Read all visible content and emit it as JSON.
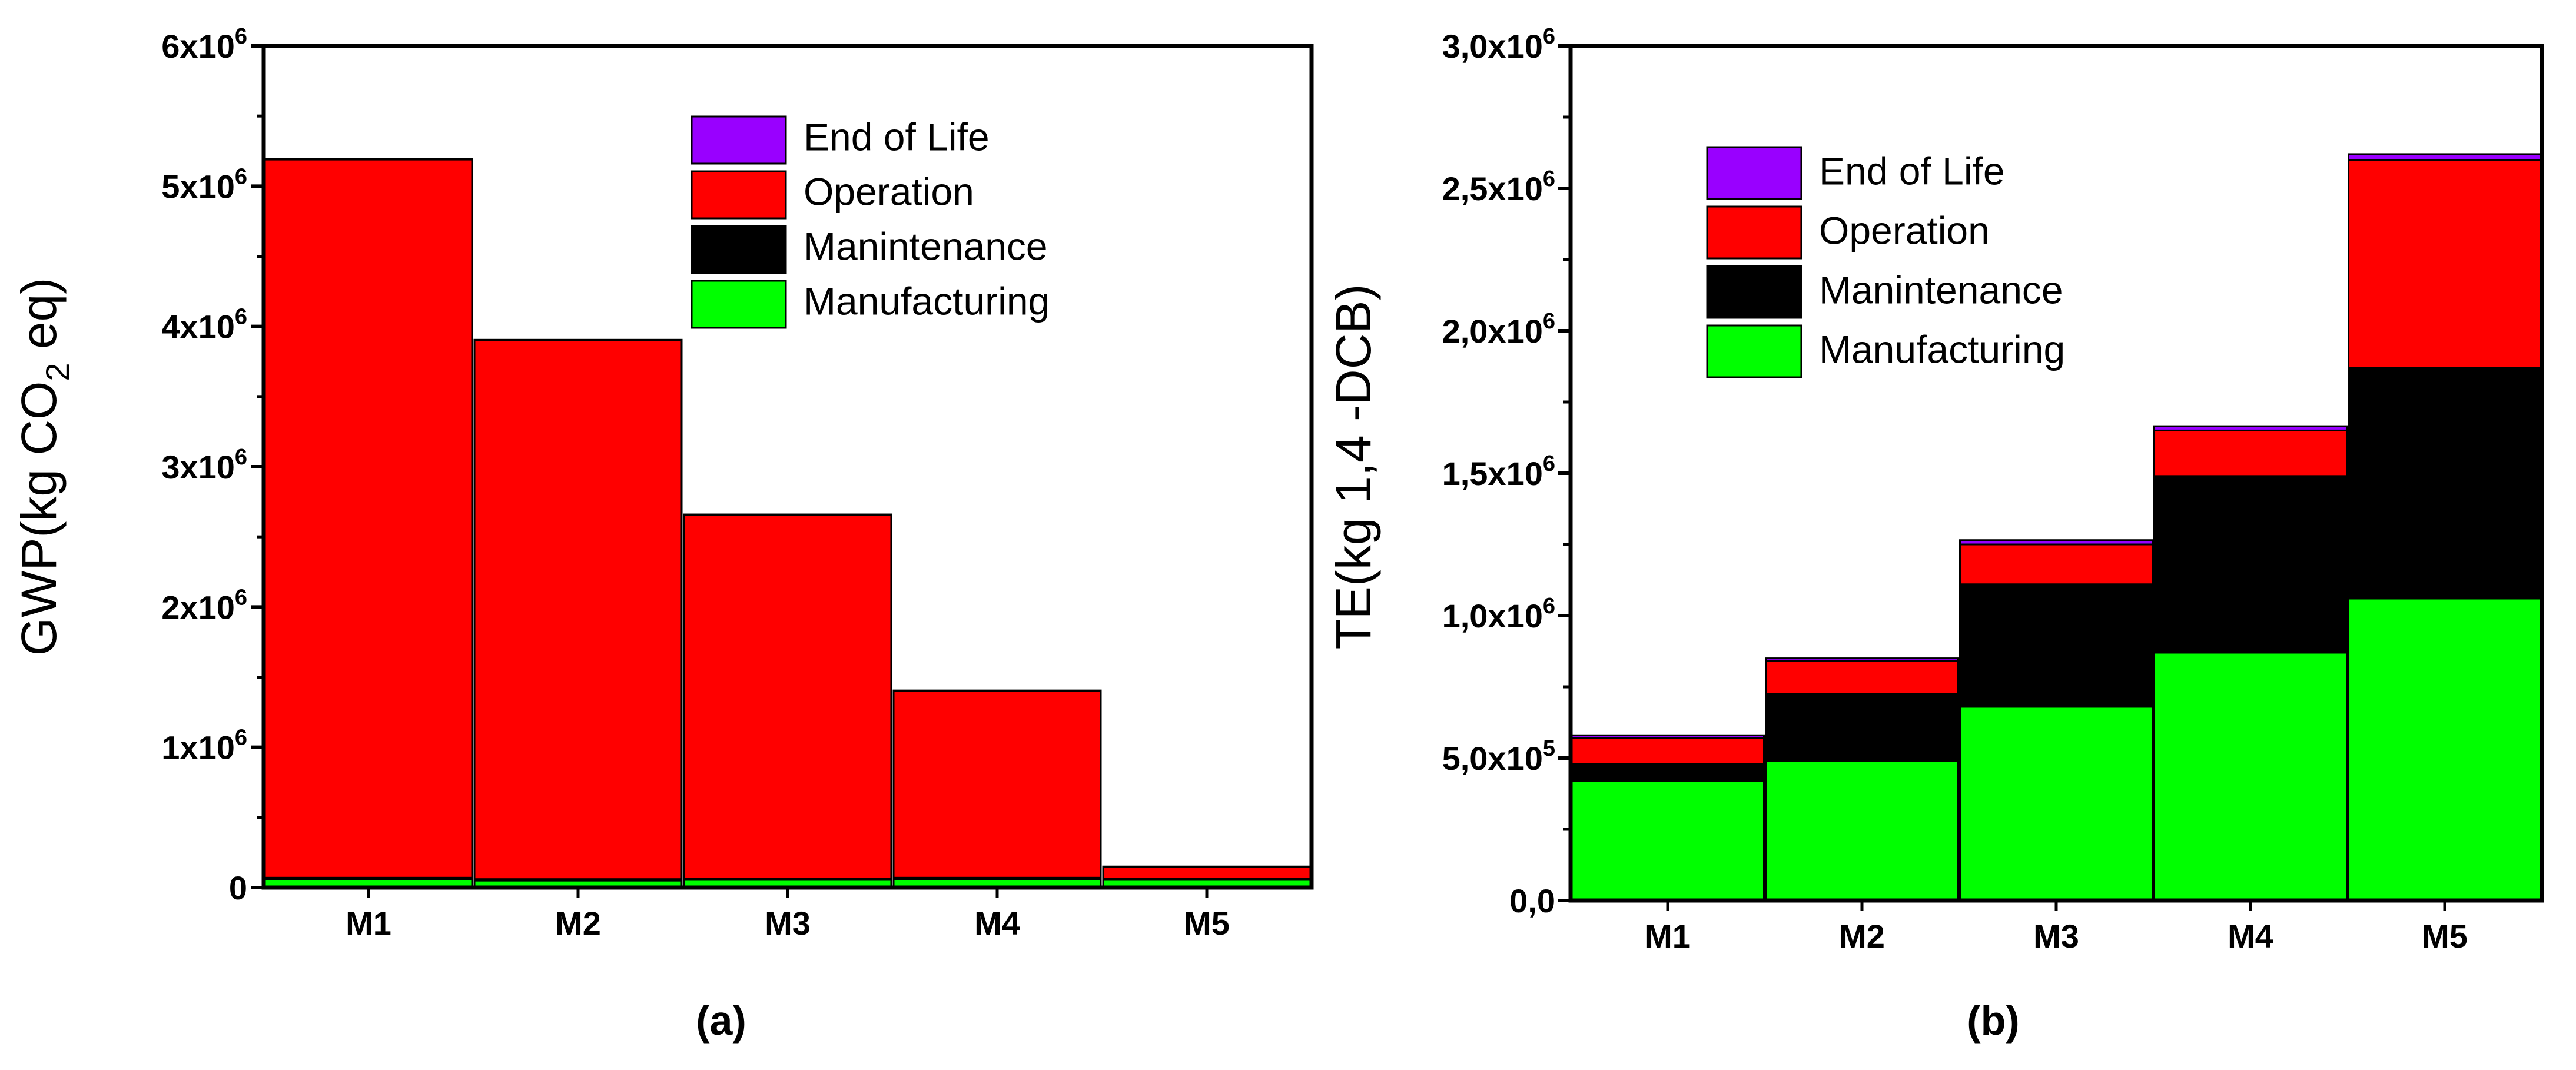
{
  "colors": {
    "End of Life": "#9900ff",
    "Operation": "#ff0000",
    "Manintenance": "#000000",
    "Manufacturing": "#00ff00"
  },
  "chart_data": [
    {
      "type": "bar",
      "stacked": true,
      "panel_label": "(a)",
      "title": "",
      "xlabel": "",
      "ylabel_parts": [
        "GWP(kg CO",
        "2",
        " eq)"
      ],
      "ylim": [
        0,
        6000000
      ],
      "yticks": [
        {
          "value": 0,
          "mantissa": "0",
          "exp": ""
        },
        {
          "value": 1000000,
          "mantissa": "1x10",
          "exp": "6"
        },
        {
          "value": 2000000,
          "mantissa": "2x10",
          "exp": "6"
        },
        {
          "value": 3000000,
          "mantissa": "3x10",
          "exp": "6"
        },
        {
          "value": 4000000,
          "mantissa": "4x10",
          "exp": "6"
        },
        {
          "value": 5000000,
          "mantissa": "5x10",
          "exp": "6"
        },
        {
          "value": 6000000,
          "mantissa": "6x10",
          "exp": "6"
        }
      ],
      "categories": [
        "M1",
        "M2",
        "M3",
        "M4",
        "M5"
      ],
      "legend": [
        "End of Life",
        "Operation",
        "Manintenance",
        "Manufacturing"
      ],
      "series": [
        {
          "name": "Manufacturing",
          "values": [
            60000,
            50000,
            55000,
            60000,
            55000
          ]
        },
        {
          "name": "Manintenance",
          "values": [
            10000,
            10000,
            10000,
            10000,
            10000
          ]
        },
        {
          "name": "Operation",
          "values": [
            5120000,
            3840000,
            2590000,
            1330000,
            80000
          ]
        },
        {
          "name": "End of Life",
          "values": [
            5000,
            5000,
            5000,
            5000,
            5000
          ]
        }
      ]
    },
    {
      "type": "bar",
      "stacked": true,
      "panel_label": "(b)",
      "title": "",
      "xlabel": "",
      "ylabel_parts": [
        "TE(kg 1,4 -DCB)"
      ],
      "ylim": [
        0,
        3000000
      ],
      "yticks": [
        {
          "value": 0,
          "mantissa": "0,0",
          "exp": ""
        },
        {
          "value": 500000,
          "mantissa": "5,0x10",
          "exp": "5"
        },
        {
          "value": 1000000,
          "mantissa": "1,0x10",
          "exp": "6"
        },
        {
          "value": 1500000,
          "mantissa": "1,5x10",
          "exp": "6"
        },
        {
          "value": 2000000,
          "mantissa": "2,0x10",
          "exp": "6"
        },
        {
          "value": 2500000,
          "mantissa": "2,5x10",
          "exp": "6"
        },
        {
          "value": 3000000,
          "mantissa": "3,0x10",
          "exp": "6"
        }
      ],
      "categories": [
        "M1",
        "M2",
        "M3",
        "M4",
        "M5"
      ],
      "legend": [
        "End of Life",
        "Operation",
        "Manintenance",
        "Manufacturing"
      ],
      "series": [
        {
          "name": "Manufacturing",
          "values": [
            420000,
            490000,
            680000,
            870000,
            1060000
          ]
        },
        {
          "name": "Manintenance",
          "values": [
            60000,
            235000,
            430000,
            620000,
            810000
          ]
        },
        {
          "name": "Operation",
          "values": [
            90000,
            115000,
            140000,
            160000,
            730000
          ]
        },
        {
          "name": "End of Life",
          "values": [
            10000,
            10000,
            15000,
            15000,
            20000
          ]
        }
      ]
    }
  ]
}
